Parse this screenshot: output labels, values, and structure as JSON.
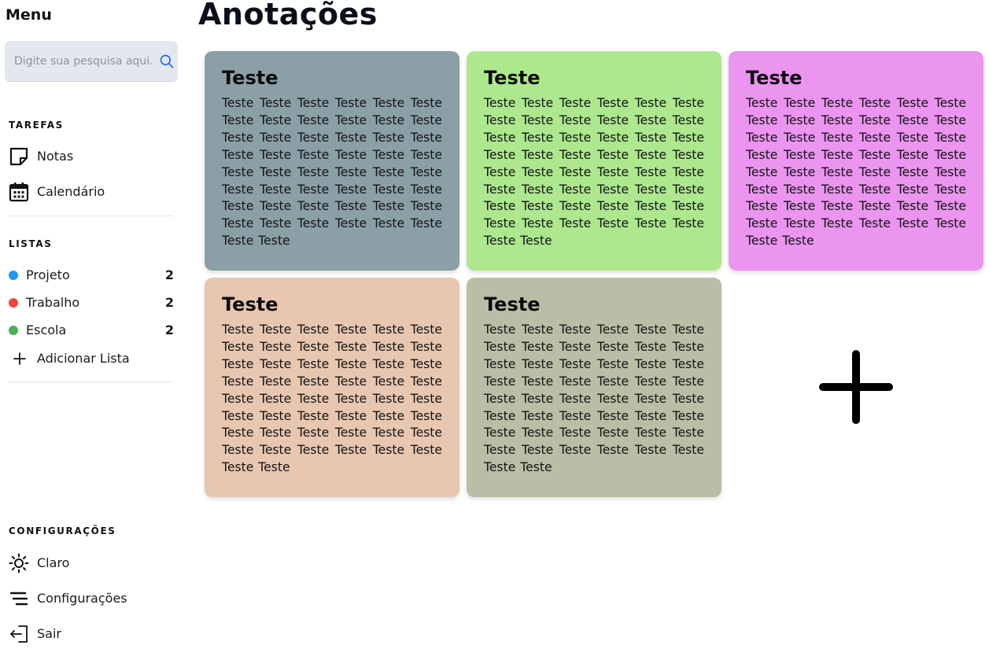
{
  "sidebar": {
    "menu_title": "Menu",
    "search": {
      "placeholder": "Digite sua pesquisa aqui..."
    },
    "tasks": {
      "title": "TAREFAS",
      "items": [
        {
          "label": "Notas",
          "icon": "sticky-note-icon"
        },
        {
          "label": "Calendário",
          "icon": "calendar-icon"
        }
      ]
    },
    "lists": {
      "title": "LISTAS",
      "items": [
        {
          "label": "Projeto",
          "count": "2",
          "color": "#2196f3"
        },
        {
          "label": "Trabalho",
          "count": "2",
          "color": "#f44336"
        },
        {
          "label": "Escola",
          "count": "2",
          "color": "#4caf50"
        }
      ],
      "add_label": "Adicionar Lista"
    },
    "settings": {
      "title": "CONFIGURAÇÕES",
      "items": [
        {
          "label": "Claro",
          "icon": "sun-icon"
        },
        {
          "label": "Configurações",
          "icon": "menu-lines-icon"
        },
        {
          "label": "Sair",
          "icon": "logout-icon"
        }
      ]
    }
  },
  "main": {
    "title": "Anotações",
    "notes": [
      {
        "title": "Teste",
        "body": "Teste Teste Teste Teste Teste Teste Teste Teste Teste Teste Teste Teste Teste Teste Teste Teste Teste Teste Teste Teste Teste Teste Teste Teste Teste Teste Teste Teste Teste Teste Teste Teste Teste Teste Teste Teste Teste Teste Teste Teste Teste Teste Teste Teste Teste Teste Teste Teste Teste Teste",
        "color": "#8b9fa7"
      },
      {
        "title": "Teste",
        "body": "Teste Teste Teste Teste Teste Teste Teste Teste Teste Teste Teste Teste Teste Teste Teste Teste Teste Teste Teste Teste Teste Teste Teste Teste Teste Teste Teste Teste Teste Teste Teste Teste Teste Teste Teste Teste Teste Teste Teste Teste Teste Teste Teste Teste Teste Teste Teste Teste Teste Teste",
        "color": "#ade88f"
      },
      {
        "title": "Teste",
        "body": "Teste Teste Teste Teste Teste Teste Teste Teste Teste Teste Teste Teste Teste Teste Teste Teste Teste Teste Teste Teste Teste Teste Teste Teste Teste Teste Teste Teste Teste Teste Teste Teste Teste Teste Teste Teste Teste Teste Teste Teste Teste Teste Teste Teste Teste Teste Teste Teste Teste Teste",
        "color": "#eb94f0"
      },
      {
        "title": "Teste",
        "body": "Teste Teste Teste Teste Teste Teste Teste Teste Teste Teste Teste Teste Teste Teste Teste Teste Teste Teste Teste Teste Teste Teste Teste Teste Teste Teste Teste Teste Teste Teste Teste Teste Teste Teste Teste Teste Teste Teste Teste Teste Teste Teste Teste Teste Teste Teste Teste Teste Teste Teste",
        "color": "#e8c7b0"
      },
      {
        "title": "Teste",
        "body": "Teste Teste Teste Teste Teste Teste Teste Teste Teste Teste Teste Teste Teste Teste Teste Teste Teste Teste Teste Teste Teste Teste Teste Teste Teste Teste Teste Teste Teste Teste Teste Teste Teste Teste Teste Teste Teste Teste Teste Teste Teste Teste Teste Teste Teste Teste Teste Teste Teste Teste",
        "color": "#babea6"
      }
    ],
    "add_note_icon": "plus-icon"
  }
}
